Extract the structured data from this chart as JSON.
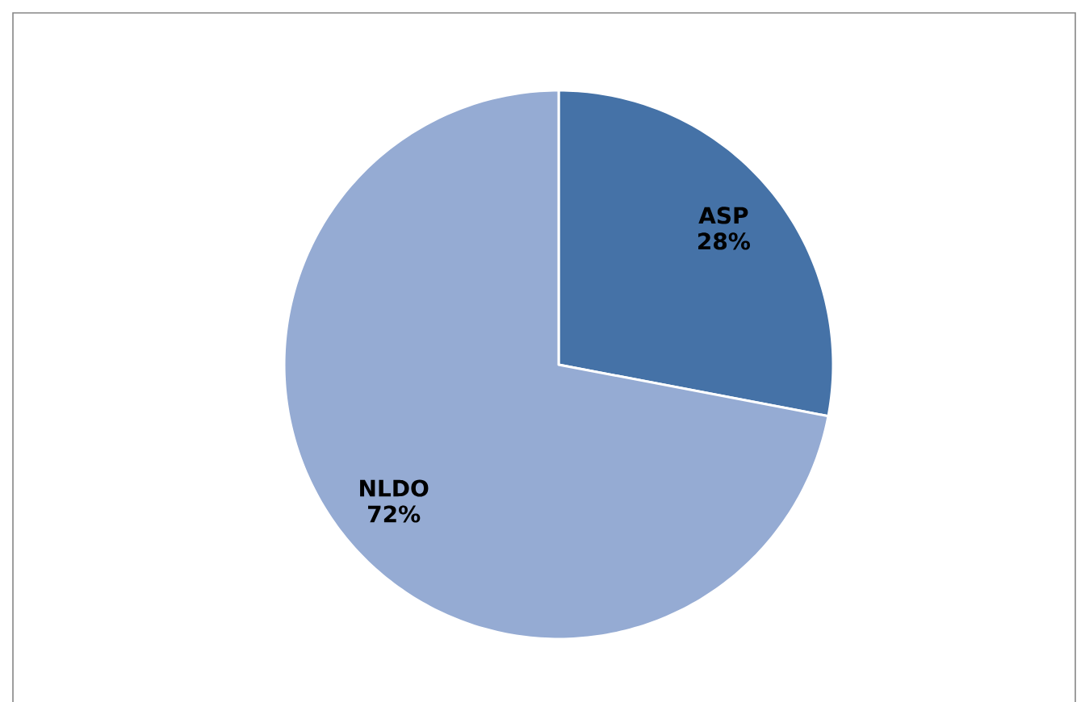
{
  "chart_data": {
    "type": "pie",
    "categories": [
      "ASP",
      "NLDO"
    ],
    "values": [
      28,
      72
    ],
    "colors": [
      "#4572a7",
      "#95abd3"
    ],
    "value_labels": [
      "28%",
      "72%"
    ]
  }
}
